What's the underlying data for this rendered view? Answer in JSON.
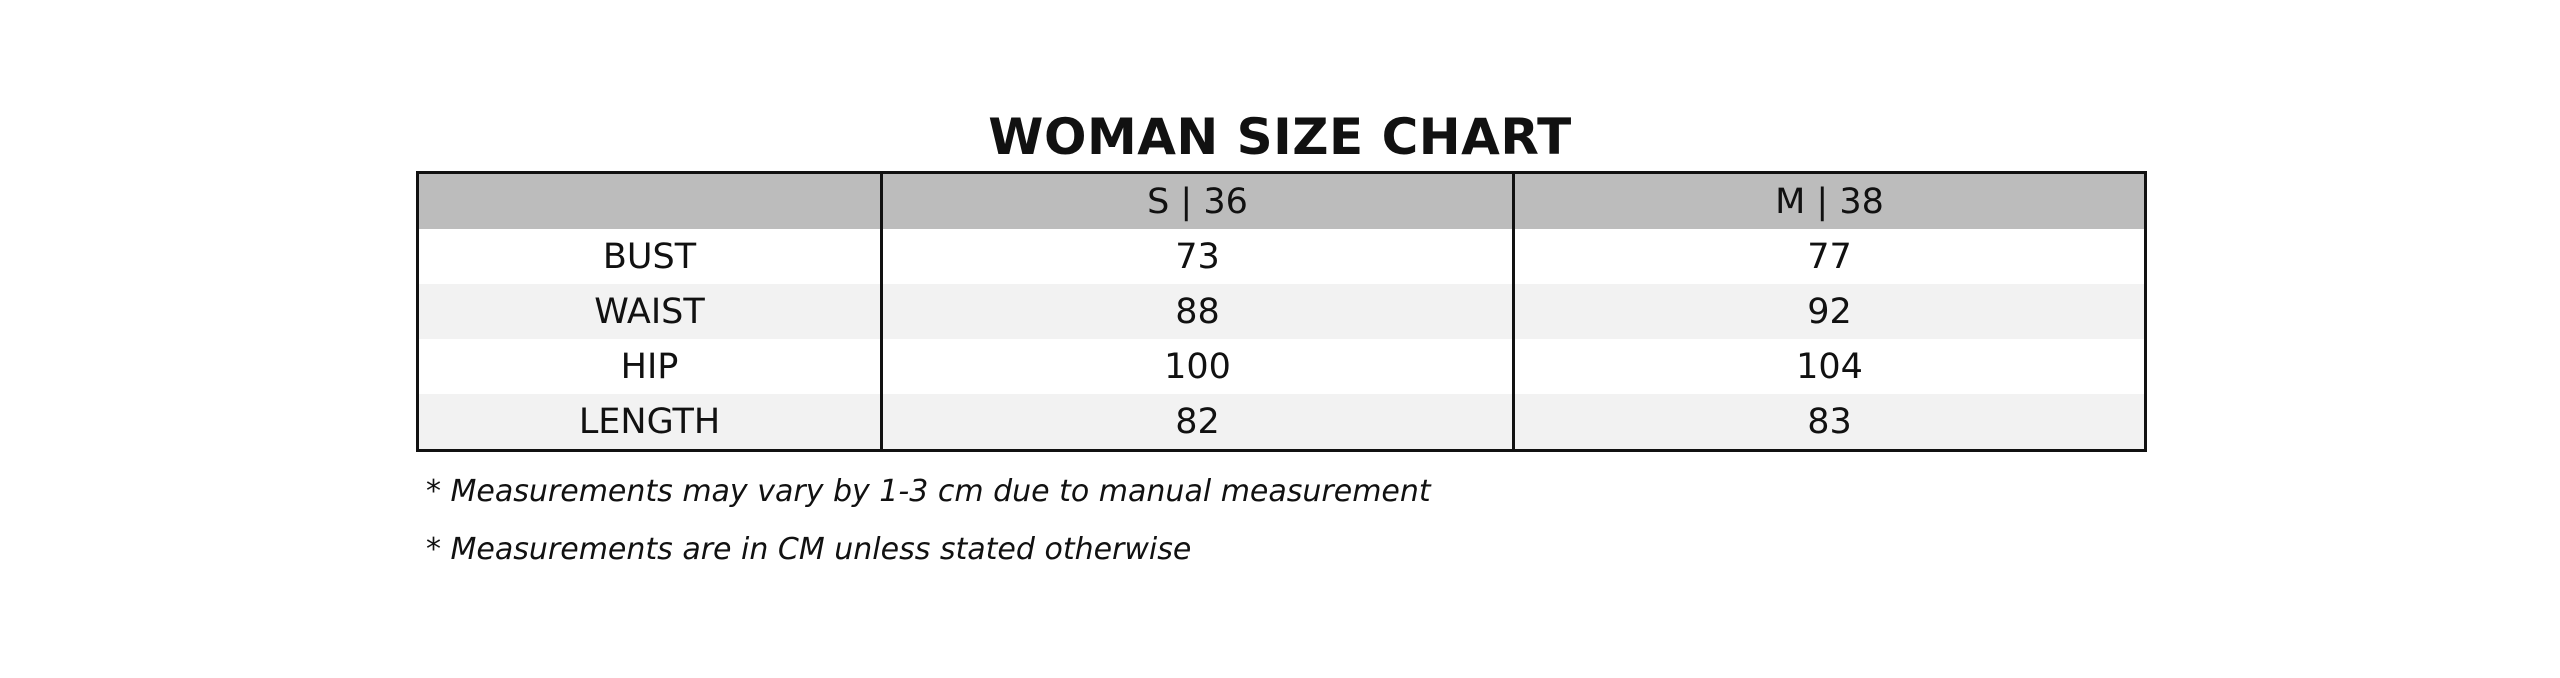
{
  "title": "WOMAN SIZE CHART",
  "table": {
    "header": [
      "S | 36",
      "M | 38"
    ],
    "rows": [
      [
        "BUST",
        73,
        77
      ],
      [
        "WAIST",
        88,
        92
      ],
      [
        "HIP",
        100,
        104
      ],
      [
        "LENGTH",
        82,
        83
      ]
    ]
  },
  "notes": [
    "* Measurements may vary by 1-3 cm due to manual measurement",
    "* Measurements are in CM unless stated otherwise"
  ]
}
